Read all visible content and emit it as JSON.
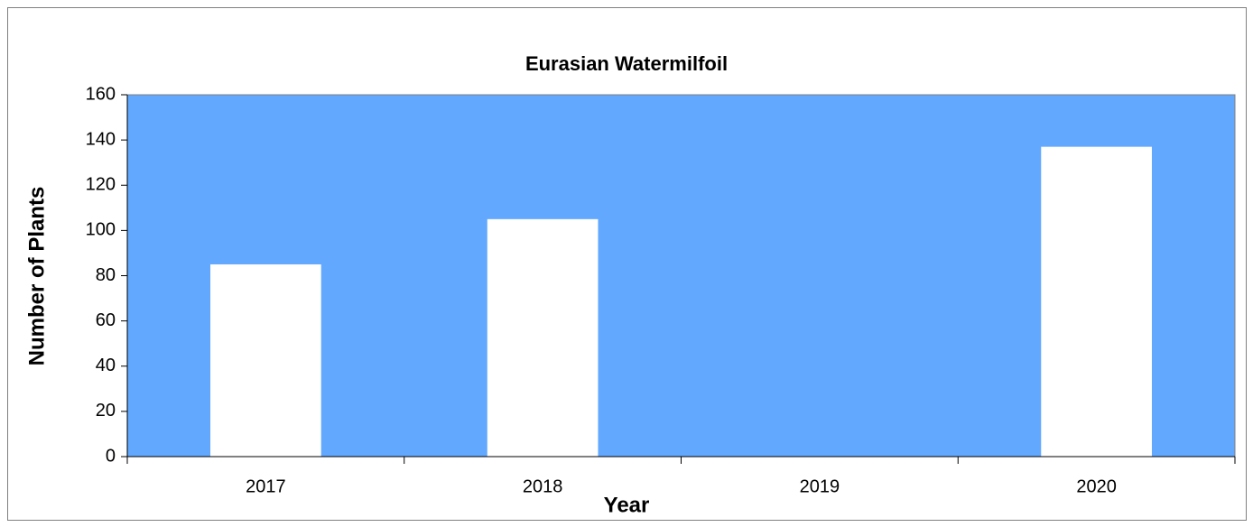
{
  "chart_data": {
    "type": "bar",
    "title": "Eurasian Watermilfoil",
    "x_label": "Year",
    "y_label": "Number of Plants",
    "categories": [
      "2017",
      "2018",
      "2019",
      "2020"
    ],
    "values": [
      85,
      105,
      0,
      137
    ],
    "color": "#ffffff",
    "plot_color": "#62a8fe",
    "ylim": [
      0,
      160
    ],
    "yticks": [
      0,
      20,
      40,
      60,
      80,
      100,
      120,
      140,
      160
    ],
    "grid": false
  }
}
